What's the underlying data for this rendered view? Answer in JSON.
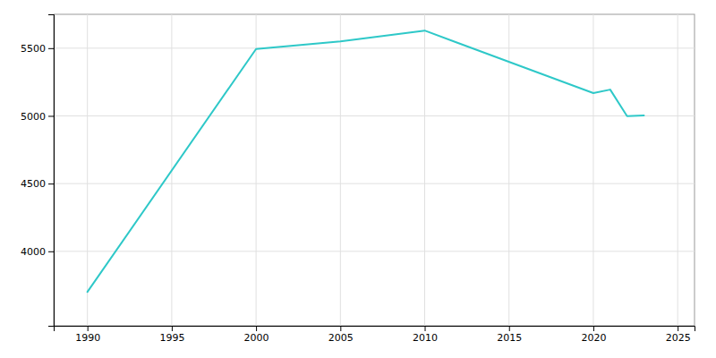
{
  "chart_data": {
    "type": "line",
    "x": [
      1990,
      2000,
      2005,
      2010,
      2020,
      2021,
      2022,
      2023
    ],
    "values": [
      3700,
      5494,
      5550,
      5630,
      5168,
      5194,
      4998,
      5003
    ],
    "color": "#2ec8c8",
    "xlim": [
      1988,
      2026
    ],
    "ylim": [
      3450,
      5750
    ],
    "xticks": [
      1990,
      1995,
      2000,
      2005,
      2010,
      2015,
      2020,
      2025
    ],
    "yticks": [
      4000,
      4500,
      5000,
      5500
    ],
    "grid": true
  }
}
